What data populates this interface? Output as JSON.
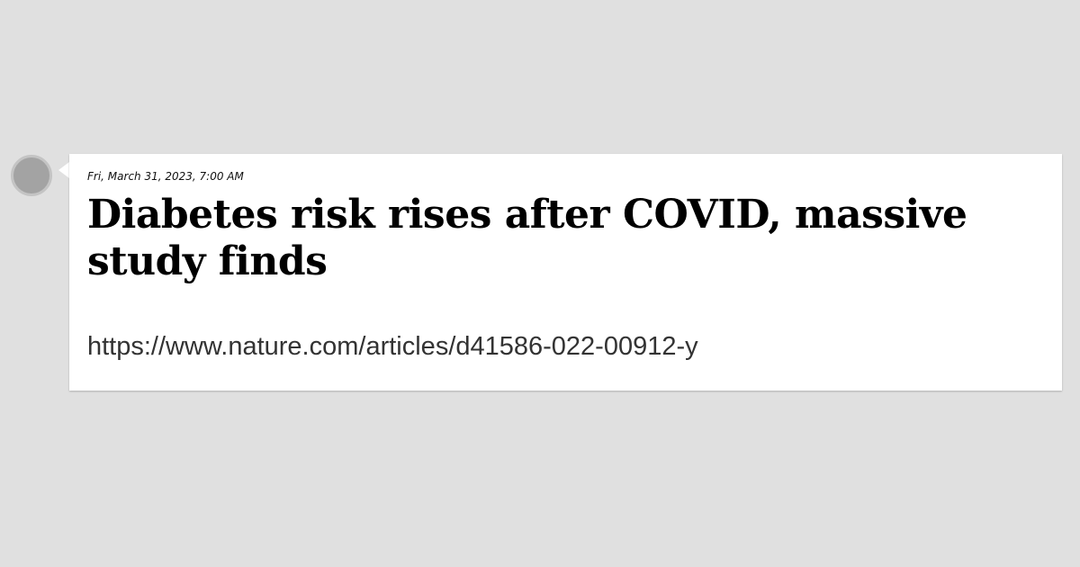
{
  "post": {
    "timestamp": "Fri, March 31, 2023, 7:00 AM",
    "headline": "Diabetes risk rises after COVID, massive study finds",
    "url": "https://www.nature.com/articles/d41586-022-00912-y"
  },
  "colors": {
    "background": "#e0e0e0",
    "card": "#ffffff",
    "avatar": "#a3a3a3",
    "headline_text": "#000000",
    "url_text": "#333333"
  },
  "icons": {
    "avatar": "avatar-placeholder-icon"
  }
}
